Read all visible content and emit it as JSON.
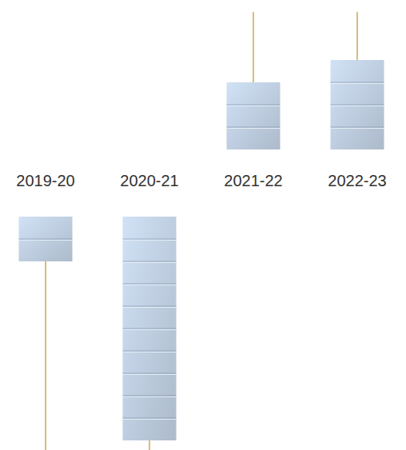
{
  "chart_data": {
    "type": "pictogram",
    "categories": [
      "2019-20",
      "2020-21",
      "2021-22",
      "2022-23"
    ],
    "values": [
      2,
      10,
      3,
      4
    ],
    "color": "#bccbdd",
    "tick_labels": "x"
  }
}
